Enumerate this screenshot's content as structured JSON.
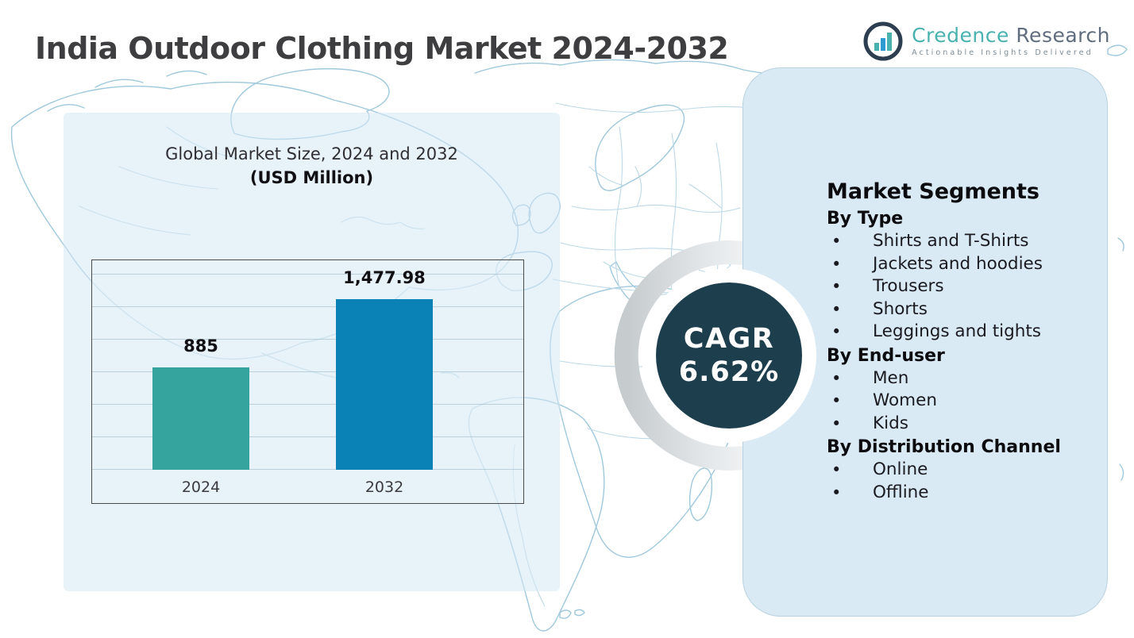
{
  "header": {
    "title": "India Outdoor Clothing Market 2024-2032"
  },
  "brand": {
    "name_primary": "Credence",
    "name_secondary": "Research",
    "tagline": "Actionable Insights Delivered"
  },
  "chart_data": {
    "type": "bar",
    "title": "Global Market Size, 2024 and 2032",
    "subtitle": "(USD Million)",
    "categories": [
      "2024",
      "2032"
    ],
    "values": [
      885,
      1477.98
    ],
    "value_labels": [
      "885",
      "1,477.98"
    ],
    "series_colors": [
      "#35A39E",
      "#0A82B5"
    ],
    "gridlines": 7,
    "legend": "none",
    "xlabel": "",
    "ylabel": ""
  },
  "cagr": {
    "label": "CAGR",
    "value": "6.62%"
  },
  "segments": {
    "heading": "Market Segments",
    "groups": [
      {
        "label": "By Type",
        "items": [
          "Shirts and T-Shirts",
          "Jackets and hoodies",
          "Trousers",
          "Shorts",
          "Leggings and tights"
        ]
      },
      {
        "label": "By End-user",
        "items": [
          "Men",
          "Women",
          "Kids"
        ]
      },
      {
        "label": "By Distribution Channel",
        "items": [
          "Online",
          "Offline"
        ]
      }
    ]
  },
  "colors": {
    "bar_2024": "#35A39E",
    "bar_2032": "#0A82B5",
    "cagr_circle": "#1C3E4D",
    "left_panel_fill": "#E6F0F8",
    "right_panel_fill": "#DAEAF4",
    "map_outline": "#9FC8DC",
    "title_text": "#3E3E40",
    "logo_teal": "#49B2B0",
    "logo_gray": "#5F6D7E",
    "logo_navy": "#2C3E50"
  }
}
